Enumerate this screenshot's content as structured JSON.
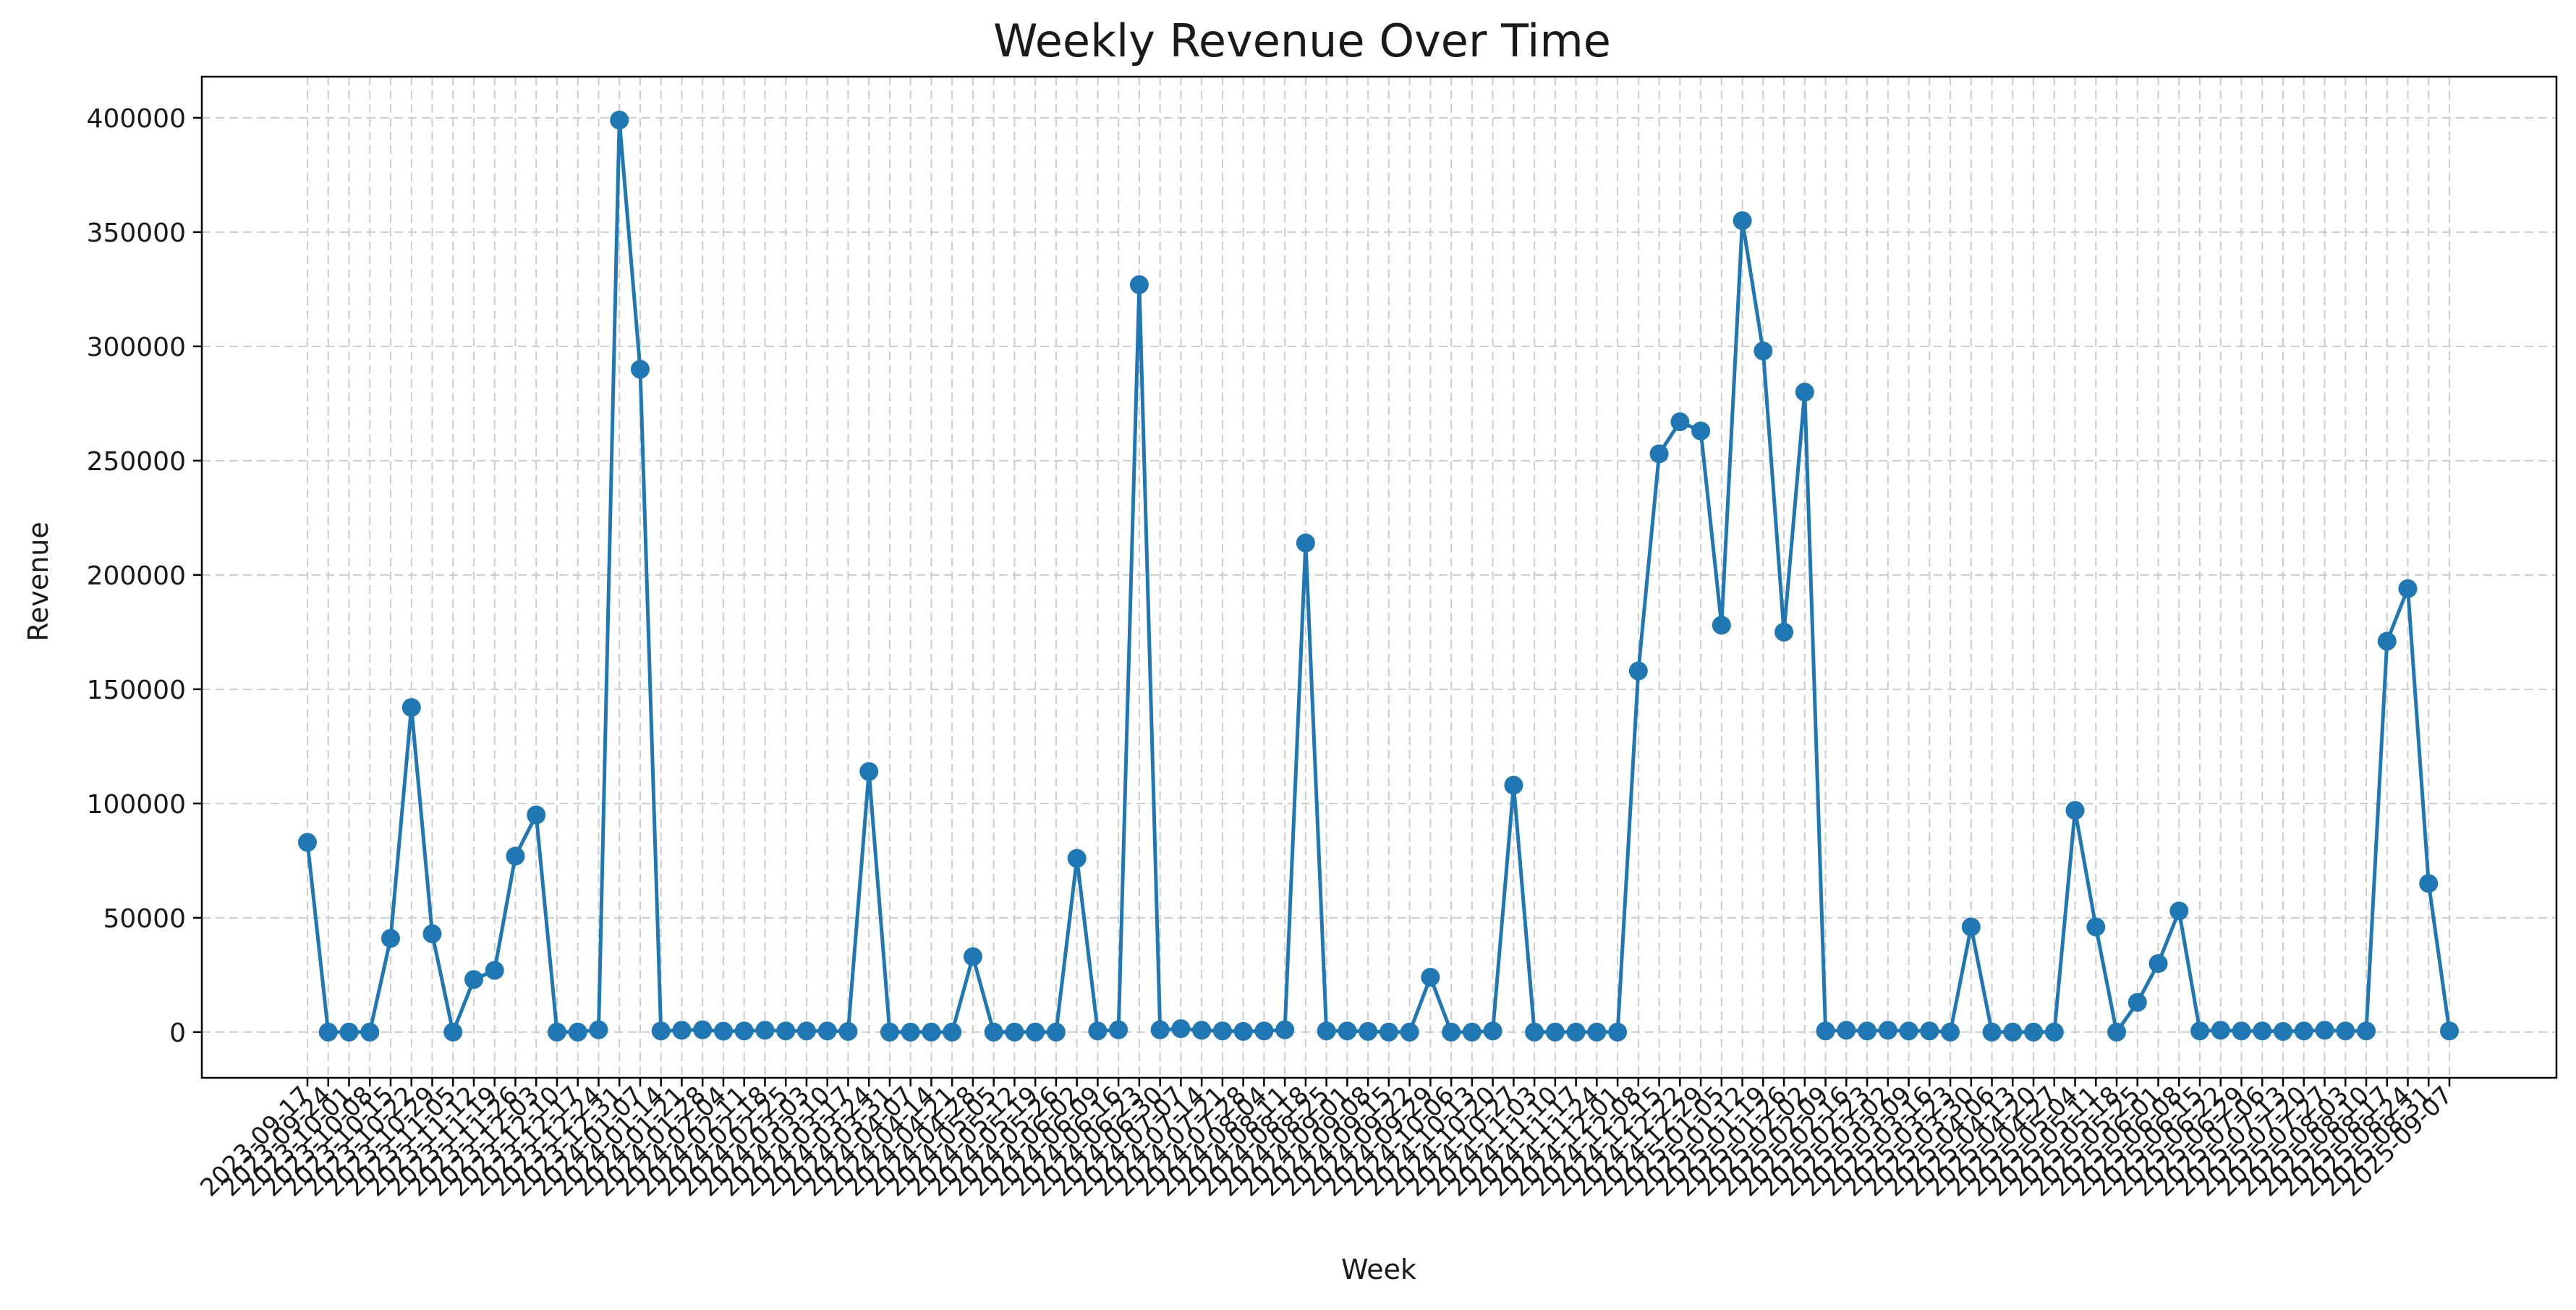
{
  "chart_data": {
    "type": "line",
    "title": "Weekly Revenue Over Time",
    "xlabel": "Week",
    "ylabel": "Revenue",
    "ylim": [
      -20000,
      418000
    ],
    "yticks": [
      0,
      50000,
      100000,
      150000,
      200000,
      250000,
      300000,
      350000,
      400000
    ],
    "grid": true,
    "colors": {
      "series": "#1f77b4"
    },
    "x": [
      "2023-09-17",
      "2023-09-24",
      "2023-10-01",
      "2023-10-08",
      "2023-10-15",
      "2023-10-22",
      "2023-10-29",
      "2023-11-05",
      "2023-11-12",
      "2023-11-19",
      "2023-11-26",
      "2023-12-03",
      "2023-12-10",
      "2023-12-17",
      "2023-12-24",
      "2023-12-31",
      "2024-01-07",
      "2024-01-14",
      "2024-01-21",
      "2024-01-28",
      "2024-02-04",
      "2024-02-11",
      "2024-02-18",
      "2024-02-25",
      "2024-03-03",
      "2024-03-10",
      "2024-03-17",
      "2024-03-24",
      "2024-03-31",
      "2024-04-07",
      "2024-04-14",
      "2024-04-21",
      "2024-04-28",
      "2024-05-05",
      "2024-05-12",
      "2024-05-19",
      "2024-05-26",
      "2024-06-02",
      "2024-06-09",
      "2024-06-16",
      "2024-06-23",
      "2024-06-30",
      "2024-07-07",
      "2024-07-14",
      "2024-07-21",
      "2024-07-28",
      "2024-08-04",
      "2024-08-11",
      "2024-08-18",
      "2024-08-25",
      "2024-09-01",
      "2024-09-08",
      "2024-09-15",
      "2024-09-22",
      "2024-09-29",
      "2024-10-06",
      "2024-10-13",
      "2024-10-20",
      "2024-10-27",
      "2024-11-03",
      "2024-11-10",
      "2024-11-17",
      "2024-11-24",
      "2024-12-01",
      "2024-12-08",
      "2024-12-15",
      "2024-12-22",
      "2024-12-29",
      "2025-01-05",
      "2025-01-12",
      "2025-01-19",
      "2025-01-26",
      "2025-02-02",
      "2025-02-09",
      "2025-02-16",
      "2025-02-23",
      "2025-03-02",
      "2025-03-09",
      "2025-03-16",
      "2025-03-23",
      "2025-03-30",
      "2025-04-06",
      "2025-04-13",
      "2025-04-20",
      "2025-04-27",
      "2025-05-04",
      "2025-05-11",
      "2025-05-18",
      "2025-05-25",
      "2025-06-01",
      "2025-06-08",
      "2025-06-15",
      "2025-06-22",
      "2025-06-29",
      "2025-07-06",
      "2025-07-13",
      "2025-07-20",
      "2025-07-27",
      "2025-08-03",
      "2025-08-10",
      "2025-08-17",
      "2025-08-24",
      "2025-08-31",
      "2025-09-07"
    ],
    "series": [
      {
        "name": "",
        "values": [
          83000,
          0,
          0,
          0,
          41000,
          142000,
          43000,
          0,
          23000,
          27000,
          77000,
          95000,
          0,
          0,
          1000,
          399000,
          290000,
          500,
          800,
          1000,
          400,
          500,
          800,
          500,
          500,
          500,
          300,
          114000,
          0,
          0,
          0,
          0,
          33000,
          0,
          0,
          0,
          0,
          76000,
          500,
          1000,
          327000,
          1000,
          1500,
          800,
          500,
          300,
          500,
          1000,
          214000,
          500,
          500,
          300,
          0,
          0,
          24000,
          0,
          0,
          500,
          108000,
          0,
          0,
          0,
          0,
          0,
          158000,
          253000,
          267000,
          263000,
          178000,
          355000,
          298000,
          175000,
          280000,
          500,
          800,
          500,
          800,
          500,
          500,
          0,
          46000,
          0,
          0,
          0,
          0,
          97000,
          46000,
          0,
          13000,
          30000,
          53000,
          500,
          800,
          500,
          500,
          300,
          500,
          800,
          500,
          500,
          171000,
          194000,
          65000,
          500
        ]
      }
    ]
  }
}
